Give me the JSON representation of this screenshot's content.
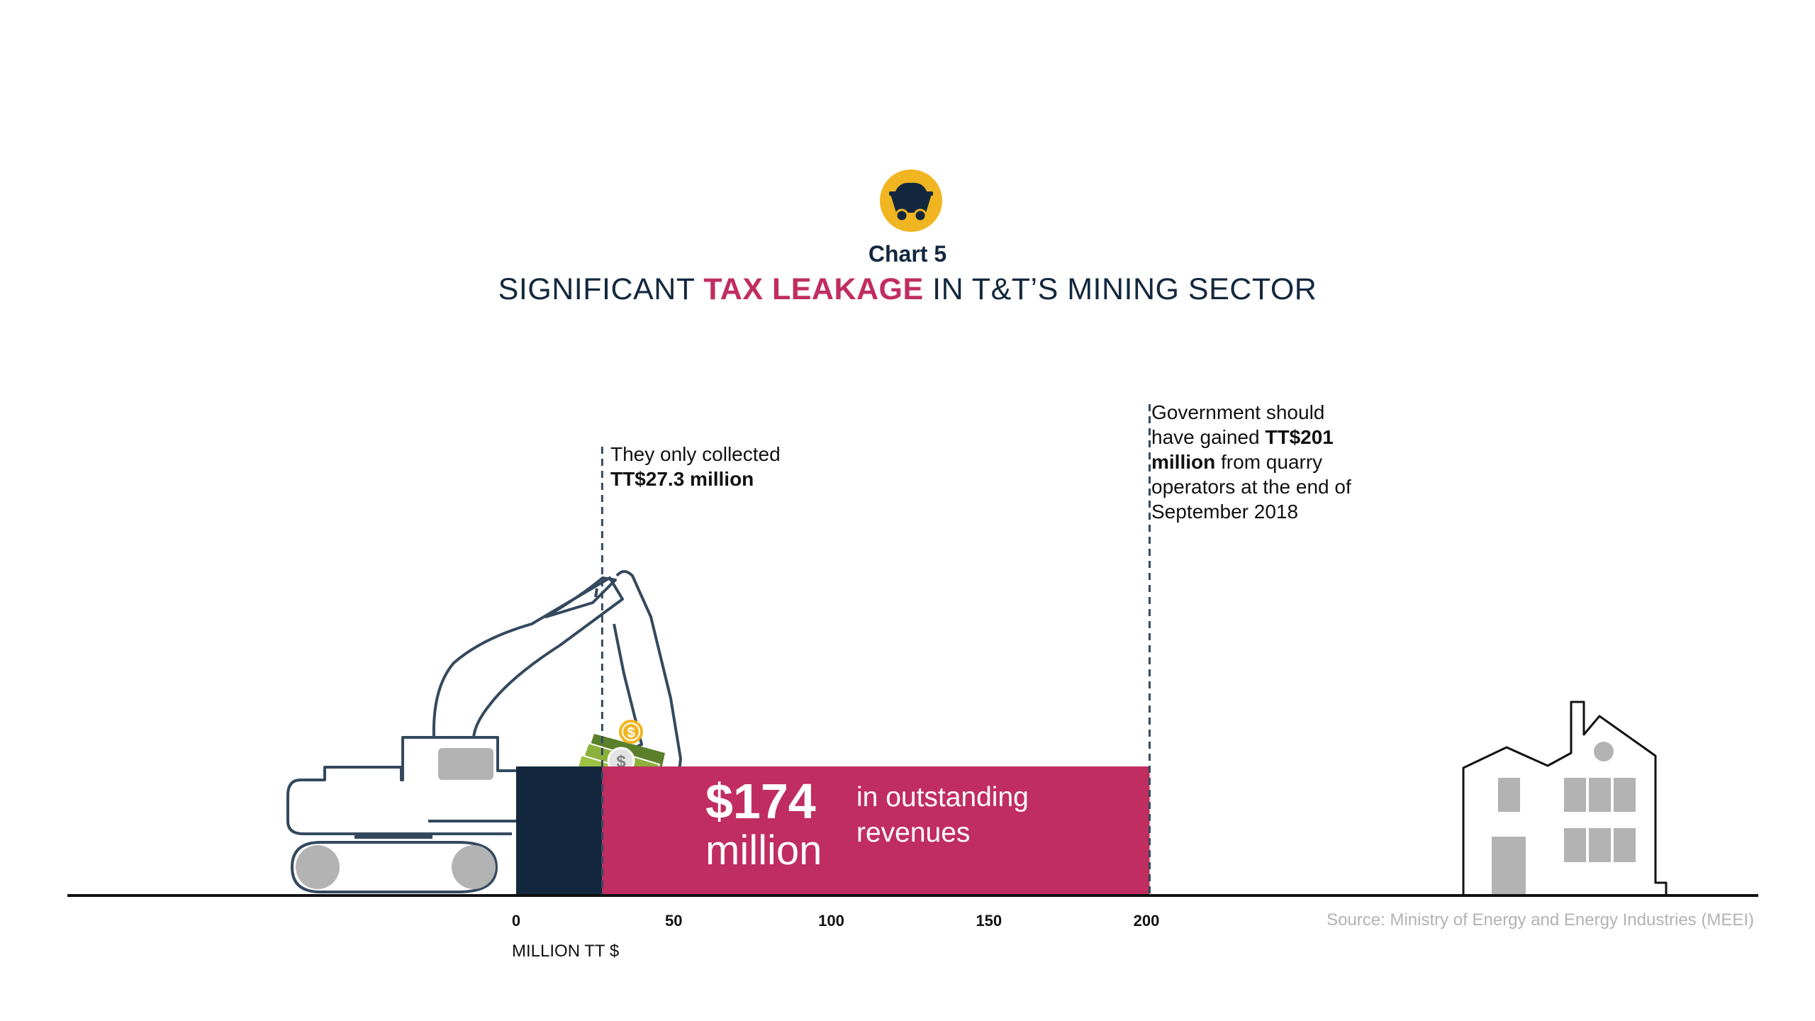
{
  "header": {
    "chart_number": "Chart 5",
    "title_parts": [
      "SIGNIFICANT ",
      "TAX LEAKAGE",
      " IN T&T’S MINING SECTOR"
    ]
  },
  "annotations": {
    "collected_line1": "They only collected",
    "collected_value": "TT$27.3 million",
    "should_text_1": "Government should have gained ",
    "should_value": "TT$201 million",
    "should_text_2": " from quarry operators at the end of September 2018"
  },
  "gap": {
    "amount": "$174",
    "unit": "million",
    "caption": "in outstanding revenues"
  },
  "source": "Source: Ministry of Energy and Energy Industries (MEEI)",
  "colors": {
    "collected": "#13283f",
    "outstanding": "#c02d61",
    "accent": "#f1b521",
    "text": "#13283f"
  },
  "icons": [
    "mine-cart-icon",
    "excavator-icon",
    "money-icon",
    "coin-icon",
    "factory-icon"
  ],
  "chart_data": {
    "type": "bar",
    "orientation": "horizontal",
    "xlabel": "MILLION TT $",
    "xlim": [
      0,
      200
    ],
    "xticks": [
      0,
      50,
      100,
      150,
      200
    ],
    "tick_labels": [
      "0",
      "50",
      "100",
      "150",
      "200"
    ],
    "collected": 27.3,
    "expected": 201,
    "outstanding": 174,
    "grid": false
  }
}
